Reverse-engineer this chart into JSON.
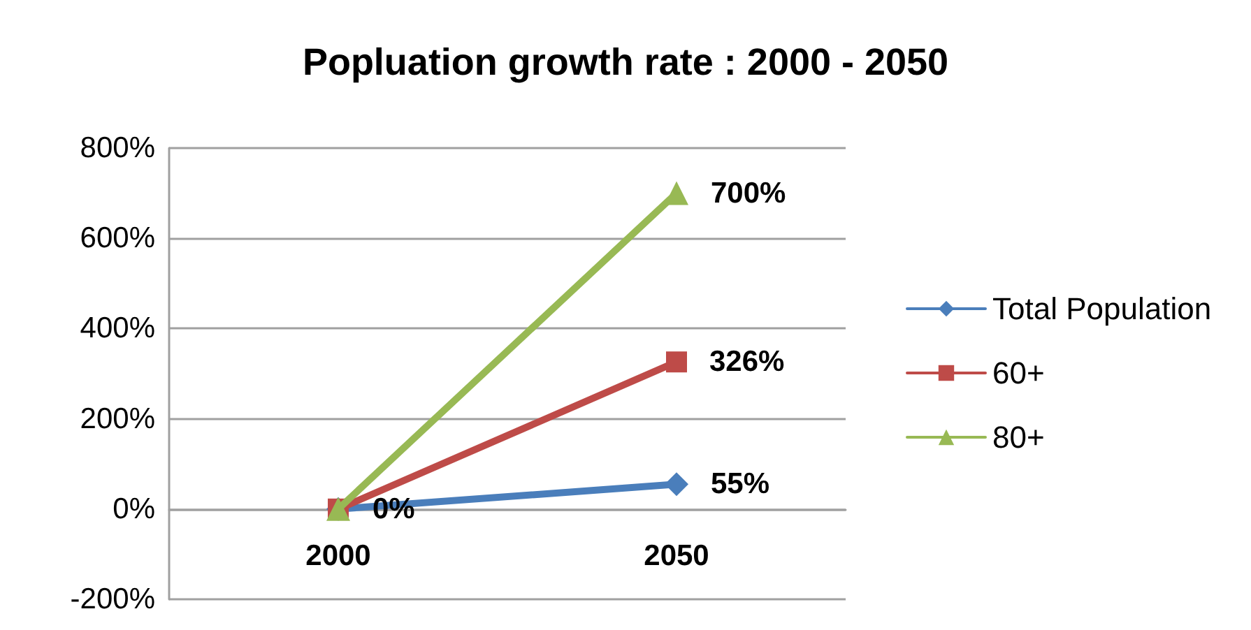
{
  "chart_data": {
    "type": "line",
    "title": "Popluation growth rate : 2000 - 2050",
    "categories": [
      "2000",
      "2050"
    ],
    "series": [
      {
        "name": "Total Population",
        "color": "#4a7ebb",
        "marker": "diamond",
        "values": [
          0,
          55
        ],
        "value_labels": [
          "0%",
          "55%"
        ]
      },
      {
        "name": "60+",
        "color": "#be4b48",
        "marker": "square",
        "values": [
          0,
          326
        ],
        "value_labels": [
          null,
          "326%"
        ]
      },
      {
        "name": "80+",
        "color": "#98b954",
        "marker": "triangle",
        "values": [
          0,
          700
        ],
        "value_labels": [
          null,
          "700%"
        ]
      }
    ],
    "ylim": [
      -200,
      800
    ],
    "yticks": [
      {
        "value": -200,
        "label": "-200%"
      },
      {
        "value": 0,
        "label": "0%"
      },
      {
        "value": 200,
        "label": "200%"
      },
      {
        "value": 400,
        "label": "400%"
      },
      {
        "value": 600,
        "label": "600%"
      },
      {
        "value": 800,
        "label": "800%"
      }
    ],
    "grid": "y",
    "legend": "right"
  }
}
